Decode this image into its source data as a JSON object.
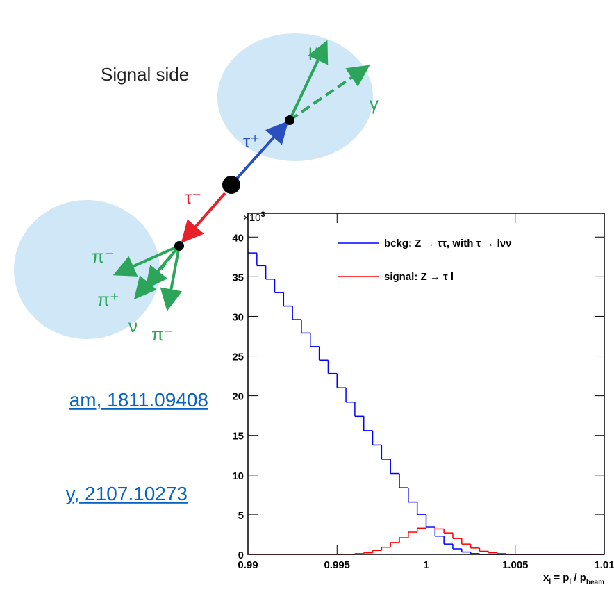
{
  "diagram": {
    "title": "Signal side",
    "mu": "μ⁺",
    "gamma": "γ",
    "tau_plus": "τ⁺",
    "tau_minus": "τ⁻",
    "pi_minus_1": "π⁻",
    "pi_plus": "π⁺",
    "nu": "ν",
    "pi_minus_2": "π⁻"
  },
  "links": [
    "am, 1811.09408",
    "y, 2107.10273"
  ],
  "chart_data": {
    "type": "histogram",
    "y_multiplier": {
      "base": "×10",
      "exponent": "3"
    },
    "x_label_parts": [
      "x",
      "l",
      " = p",
      "l",
      " / p",
      "beam"
    ],
    "bins": [
      0.99,
      0.9905,
      0.991,
      0.9915,
      0.992,
      0.9925,
      0.993,
      0.9935,
      0.994,
      0.9945,
      0.995,
      0.9955,
      0.996,
      0.9965,
      0.997,
      0.9975,
      0.998,
      0.9985,
      0.999,
      0.9995,
      1.0,
      1.0005,
      1.001,
      1.0015,
      1.002,
      1.0025,
      1.003,
      1.0035,
      1.004,
      1.0045,
      1.005,
      1.0055,
      1.006,
      1.0065,
      1.007,
      1.0075,
      1.008,
      1.0085,
      1.009,
      1.0095,
      1.01
    ],
    "series": [
      {
        "name": "bckg: Z → ττ, with τ → lνν",
        "color": "#0000ff",
        "values": [
          38.0,
          36.4,
          34.7,
          33.0,
          31.3,
          29.6,
          27.9,
          26.2,
          24.5,
          22.8,
          21.0,
          19.2,
          17.4,
          15.6,
          13.8,
          12.0,
          10.2,
          8.4,
          6.6,
          5.0,
          3.5,
          2.3,
          1.3,
          0.7,
          0.3,
          0.1,
          0,
          0,
          0,
          0,
          0,
          0,
          0,
          0,
          0,
          0,
          0,
          0,
          0,
          0
        ]
      },
      {
        "name": "signal: Z → τ l",
        "color": "#ff0000",
        "values": [
          0,
          0,
          0,
          0,
          0,
          0,
          0,
          0,
          0,
          0,
          0,
          0,
          0.1,
          0.2,
          0.5,
          0.9,
          1.5,
          2.1,
          2.8,
          3.3,
          3.4,
          3.2,
          2.7,
          2.0,
          1.3,
          0.8,
          0.4,
          0.2,
          0.1,
          0,
          0,
          0,
          0,
          0,
          0,
          0,
          0,
          0,
          0,
          0
        ]
      }
    ],
    "xlim": [
      0.99,
      1.01
    ],
    "ylim": [
      0,
      43
    ],
    "xticks": [
      0.99,
      0.995,
      1,
      1.005,
      1.01
    ],
    "yticks": [
      0,
      5,
      10,
      15,
      20,
      25,
      30,
      35,
      40
    ]
  }
}
